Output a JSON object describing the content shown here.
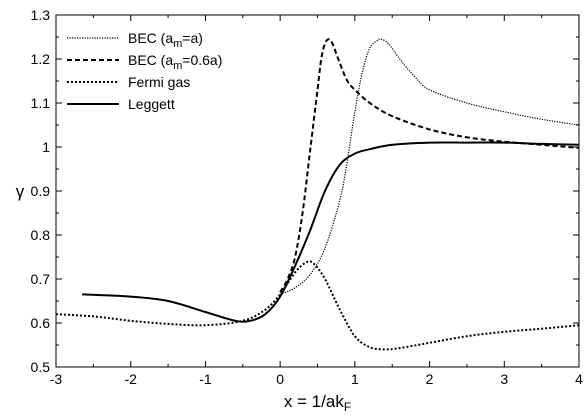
{
  "chart_data": {
    "type": "line",
    "title": "",
    "xlabel": {
      "main": "x = 1/ak",
      "sub": "F"
    },
    "ylabel": "γ",
    "xlim": [
      -3,
      4
    ],
    "ylim": [
      0.5,
      1.3
    ],
    "xticks": [
      -3,
      -2,
      -1,
      0,
      1,
      2,
      3,
      4
    ],
    "yticks": [
      0.5,
      0.6,
      0.7,
      0.8,
      0.9,
      1,
      1.1,
      1.2,
      1.3
    ],
    "xtick_labels": [
      "-3",
      "-2",
      "-1",
      "0",
      "1",
      "2",
      "3",
      "4"
    ],
    "ytick_labels": [
      "0.5",
      "0.6",
      "0.7",
      "0.8",
      "0.9",
      "1",
      "1.1",
      "1.2",
      "1.3"
    ],
    "grid": false,
    "legend_position": "top-left",
    "series": [
      {
        "name": "BEC  (am=a)",
        "legend": {
          "pre": "BEC  (a",
          "sub": "m",
          "post": "=a)"
        },
        "style": "dotted-fine",
        "x": [
          0.0,
          0.2,
          0.4,
          0.6,
          0.8,
          0.9,
          1.0,
          1.1,
          1.2,
          1.3,
          1.35,
          1.45,
          1.6,
          1.8,
          2.0,
          2.5,
          3.0,
          3.5,
          4.0
        ],
        "y": [
          0.665,
          0.68,
          0.71,
          0.77,
          0.88,
          0.97,
          1.08,
          1.17,
          1.225,
          1.242,
          1.245,
          1.235,
          1.2,
          1.16,
          1.13,
          1.1,
          1.08,
          1.063,
          1.05
        ]
      },
      {
        "name": "BEC  (am=0.6a)",
        "legend": {
          "pre": "BEC  (a",
          "sub": "m",
          "post": "=0.6a)"
        },
        "style": "dashed",
        "x": [
          0.0,
          0.1,
          0.2,
          0.3,
          0.4,
          0.5,
          0.55,
          0.6,
          0.65,
          0.7,
          0.8,
          0.9,
          1.0,
          1.2,
          1.5,
          2.0,
          2.5,
          3.0,
          3.5,
          4.0
        ],
        "y": [
          0.67,
          0.7,
          0.75,
          0.85,
          0.99,
          1.13,
          1.2,
          1.235,
          1.245,
          1.235,
          1.19,
          1.15,
          1.13,
          1.1,
          1.07,
          1.04,
          1.022,
          1.012,
          1.005,
          0.998
        ]
      },
      {
        "name": "Fermi gas",
        "legend": {
          "pre": "Fermi gas",
          "sub": "",
          "post": ""
        },
        "style": "dotted",
        "x": [
          -3.0,
          -2.5,
          -2.0,
          -1.5,
          -1.0,
          -0.5,
          -0.2,
          0.0,
          0.2,
          0.35,
          0.45,
          0.6,
          0.8,
          1.0,
          1.2,
          1.4,
          1.6,
          2.0,
          2.5,
          3.0,
          3.5,
          4.0
        ],
        "y": [
          0.62,
          0.615,
          0.605,
          0.598,
          0.595,
          0.605,
          0.63,
          0.665,
          0.715,
          0.738,
          0.735,
          0.7,
          0.63,
          0.57,
          0.545,
          0.54,
          0.543,
          0.555,
          0.57,
          0.58,
          0.587,
          0.595
        ]
      },
      {
        "name": "Leggett",
        "legend": {
          "pre": "Leggett",
          "sub": "",
          "post": ""
        },
        "style": "solid",
        "x": [
          -2.65,
          -2.0,
          -1.5,
          -1.0,
          -0.6,
          -0.4,
          -0.2,
          0.0,
          0.2,
          0.4,
          0.6,
          0.8,
          1.0,
          1.2,
          1.5,
          2.0,
          2.5,
          3.0,
          3.5,
          4.0
        ],
        "y": [
          0.665,
          0.66,
          0.65,
          0.625,
          0.605,
          0.605,
          0.62,
          0.66,
          0.73,
          0.81,
          0.9,
          0.96,
          0.985,
          0.995,
          1.005,
          1.01,
          1.01,
          1.01,
          1.007,
          1.005
        ]
      }
    ]
  }
}
